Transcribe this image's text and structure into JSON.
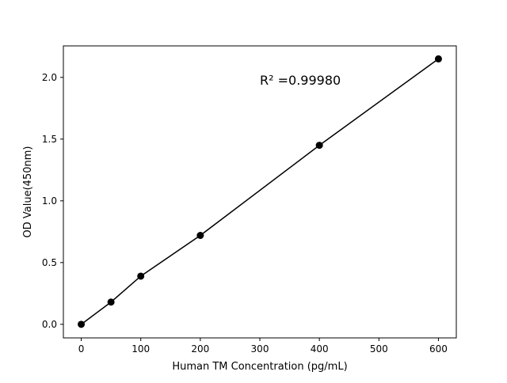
{
  "chart_data": {
    "type": "line",
    "title": "",
    "xlabel": "Human TM Concentration (pg/mL)",
    "ylabel": "OD Value(450nm)",
    "xlim": [
      -30,
      630
    ],
    "ylim": [
      -0.11,
      2.255
    ],
    "xticks": [
      0,
      100,
      200,
      300,
      400,
      500,
      600
    ],
    "xtick_labels": [
      "0",
      "100",
      "200",
      "300",
      "400",
      "500",
      "600"
    ],
    "yticks": [
      0.0,
      0.5,
      1.0,
      1.5,
      2.0
    ],
    "ytick_labels": [
      "0.0",
      "0.5",
      "1.0",
      "1.5",
      "2.0"
    ],
    "grid": false,
    "series": [
      {
        "x": [
          0,
          50,
          100,
          200,
          400,
          600
        ],
        "y": [
          0.0,
          0.18,
          0.39,
          0.72,
          1.45,
          2.15
        ],
        "color": "#000000",
        "marker": "circle"
      }
    ],
    "annotation": "R² =0.99980"
  }
}
